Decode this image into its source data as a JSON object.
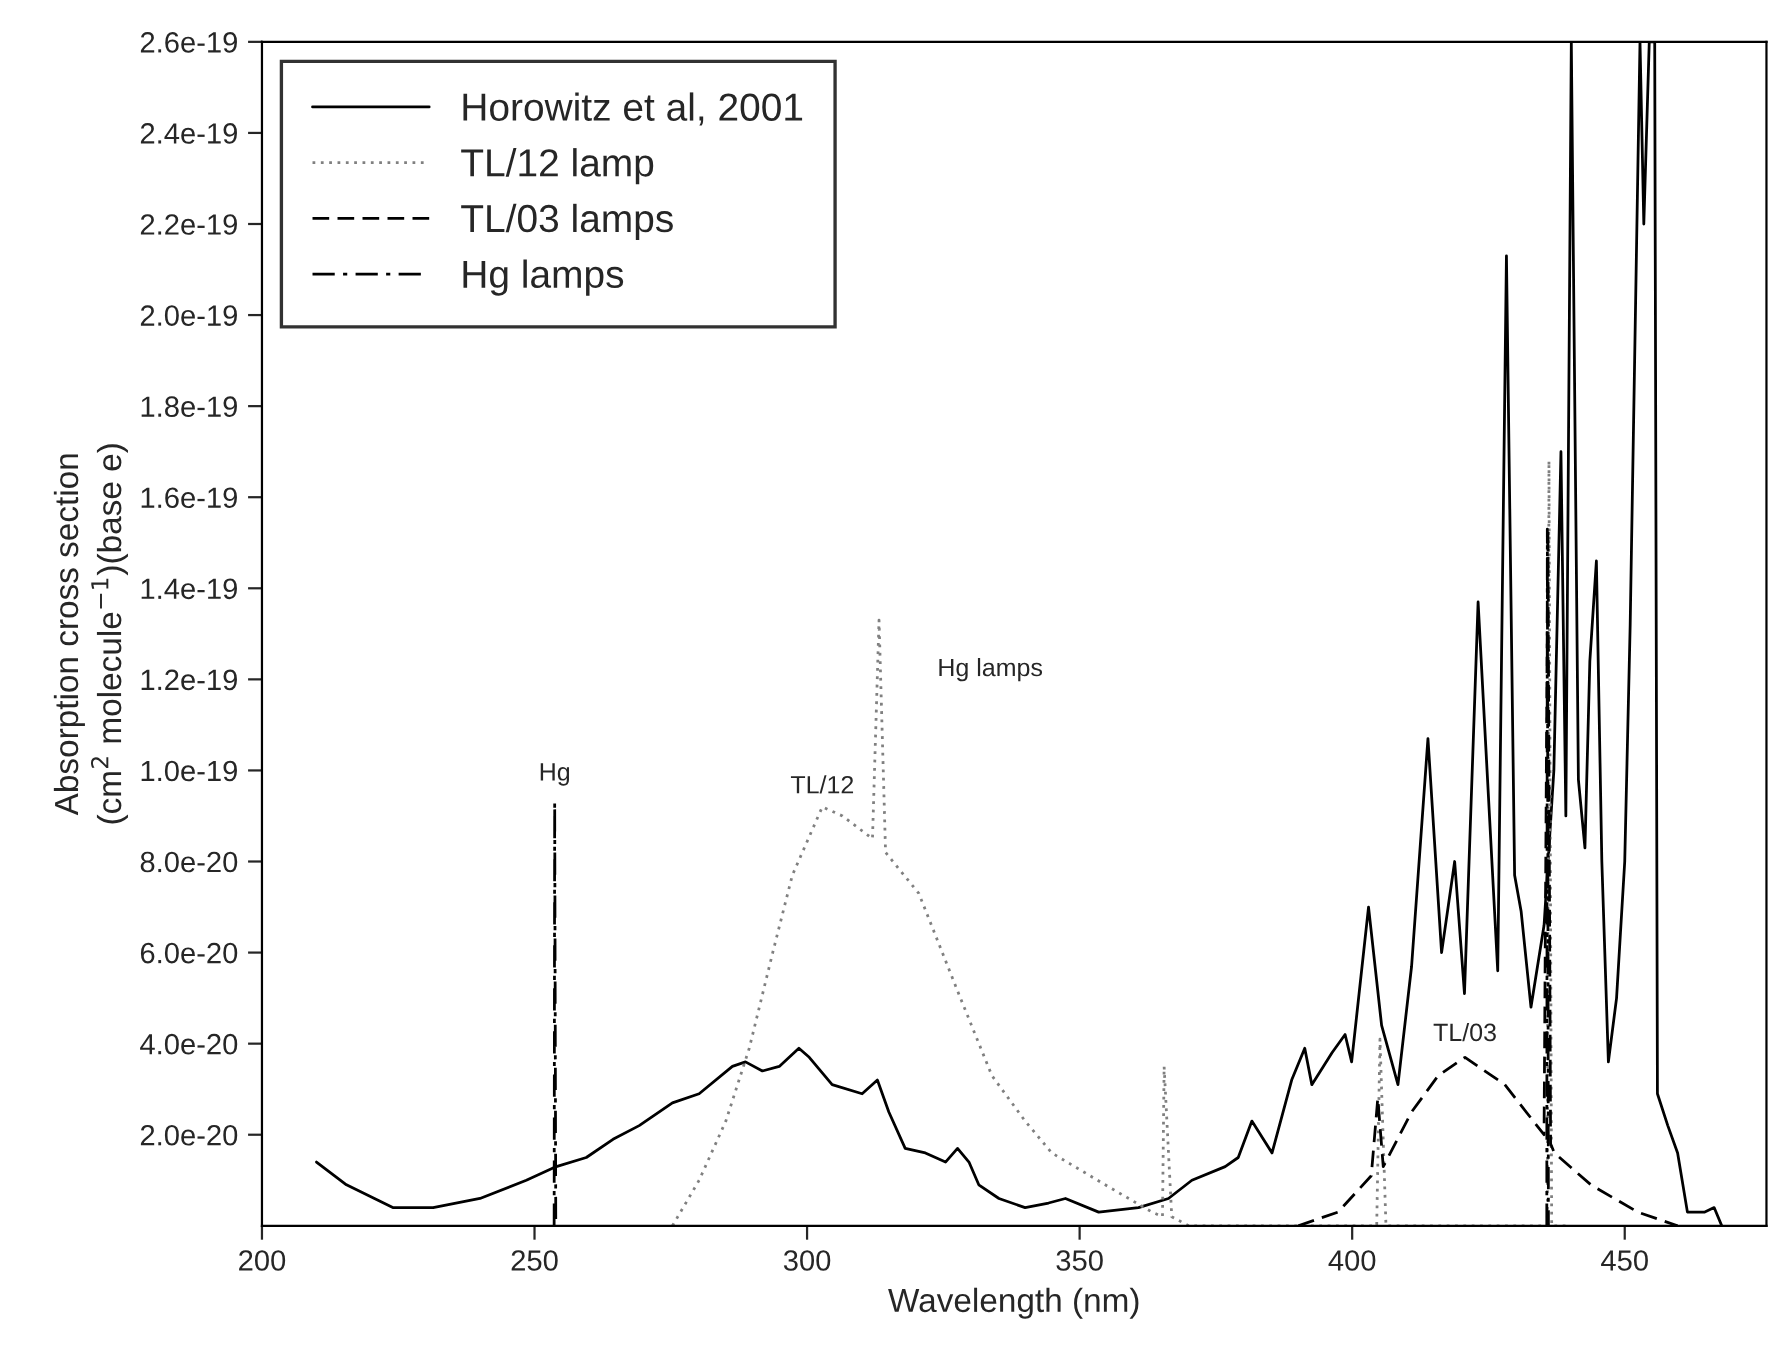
{
  "chart_data": {
    "type": "line",
    "xlabel": "Wavelength (nm)",
    "ylabel": "Absorption cross section\n(cm$^{2}$ molecule$^{−1}$)(base e)",
    "xlim": [
      200,
      476
    ],
    "xticks": [
      200,
      250,
      300,
      350,
      400,
      450
    ],
    "ylim": [
      0,
      2.6e-19
    ],
    "yticks": [
      {
        "value": 2e-20,
        "label": "2.0e-20"
      },
      {
        "value": 4e-20,
        "label": "4.0e-20"
      },
      {
        "value": 6e-20,
        "label": "6.0e-20"
      },
      {
        "value": 8e-20,
        "label": "8.0e-20"
      },
      {
        "value": 1e-19,
        "label": "1.0e-19"
      },
      {
        "value": 1.2e-19,
        "label": "1.2e-19"
      },
      {
        "value": 1.4e-19,
        "label": "1.4e-19"
      },
      {
        "value": 1.6e-19,
        "label": "1.6e-19"
      },
      {
        "value": 1.8e-19,
        "label": "1.8e-19"
      },
      {
        "value": 2e-19,
        "label": "2.0e-19"
      },
      {
        "value": 2.2e-19,
        "label": "2.2e-19"
      },
      {
        "value": 2.4e-19,
        "label": "2.4e-19"
      },
      {
        "value": 2.6e-19,
        "label": "2.6e-19"
      }
    ],
    "grid": false,
    "legend": "top left",
    "marker": "none",
    "series": [
      {
        "name": "Horowitz et al, 2001",
        "color": "#000000",
        "line_style": "solid",
        "x": [
          210.0,
          215.5,
          224,
          231.4,
          240,
          248.5,
          254,
          259.5,
          264.4,
          269.2,
          275.3,
          280.2,
          286.3,
          288.7,
          291.8,
          294.9,
          298.5,
          300.4,
          304.6,
          310.1,
          312.9,
          315,
          318,
          321.7,
          325.4,
          327.6,
          329.7,
          331.5,
          335.2,
          340,
          344.3,
          347.4,
          353.5,
          360.8,
          366.3,
          370.6,
          376.7,
          379.1,
          381.6,
          385.3,
          388.9,
          391.3,
          392.6,
          396.3,
          398.7,
          399.9,
          403,
          405.4,
          408.4,
          410.9,
          413.9,
          416.4,
          418.8,
          420.6,
          423.1,
          426.7,
          428.3,
          429.8,
          431,
          432.8,
          435.2,
          437,
          438.3,
          439.2,
          440.2,
          441.5,
          442.7,
          443.6,
          444.8,
          445.8,
          447,
          448.5,
          450,
          451,
          452.8,
          453.5,
          454.5,
          455.5,
          456,
          457.9,
          459.7,
          461.5,
          464.6,
          466.4,
          467.8
        ],
        "values": [
          1.4e-20,
          9e-21,
          4e-21,
          4e-21,
          6e-21,
          1e-20,
          1.3e-20,
          1.5e-20,
          1.9e-20,
          2.2e-20,
          2.7e-20,
          2.9e-20,
          3.5e-20,
          3.6e-20,
          3.4e-20,
          3.5e-20,
          3.9e-20,
          3.7e-20,
          3.1e-20,
          2.9e-20,
          3.2e-20,
          2.5e-20,
          1.7e-20,
          1.6e-20,
          1.4e-20,
          1.7e-20,
          1.4e-20,
          9e-21,
          6e-21,
          4e-21,
          5e-21,
          6e-21,
          3e-21,
          4e-21,
          6e-21,
          1e-20,
          1.3e-20,
          1.5e-20,
          2.3e-20,
          1.6e-20,
          3.2e-20,
          3.9e-20,
          3.1e-20,
          3.8e-20,
          4.2e-20,
          3.6e-20,
          7e-20,
          4.4e-20,
          3.1e-20,
          5.7e-20,
          1.07e-19,
          6e-20,
          8e-20,
          5.1e-20,
          1.37e-19,
          5.6e-20,
          2.13e-19,
          7.7e-20,
          6.9e-20,
          4.8e-20,
          6.6e-20,
          1e-19,
          1.7e-19,
          9e-20,
          2.6e-19,
          9.8e-20,
          8.3e-20,
          1.24e-19,
          1.46e-19,
          8e-20,
          3.6e-20,
          5e-20,
          8e-20,
          1.32e-19,
          2.6e-19,
          2.2e-19,
          2.6e-19,
          2.6e-19,
          2.9e-20,
          2.2e-20,
          1.6e-20,
          3e-21,
          3e-21,
          4e-21,
          0
        ]
      },
      {
        "name": "TL/12 lamp",
        "color": "#808080",
        "line_style": "dotted",
        "x": [
          275.3,
          280.2,
          285.1,
          289.4,
          293.7,
          297.3,
          302.8,
          306.5,
          312,
          313.2,
          314.4,
          320.5,
          327.8,
          333.9,
          340,
          344.9,
          354.7,
          363.3,
          365.2,
          365.5,
          366.9,
          370,
          404.5,
          405.1,
          406.2,
          435.8,
          436.1,
          436.6,
          440
        ],
        "values": [
          0,
          1e-20,
          2.3e-20,
          3.9e-20,
          6e-20,
          7.7e-20,
          9.2e-20,
          9e-20,
          8.5e-20,
          1.33e-19,
          8.2e-20,
          7.3e-20,
          5.1e-20,
          3.3e-20,
          2.3e-20,
          1.6e-20,
          9e-21,
          3e-21,
          2e-21,
          3.5e-20,
          2e-21,
          0,
          0,
          4.1e-20,
          0,
          0,
          1.68e-19,
          0,
          0
        ]
      },
      {
        "name": "TL/03 lamps",
        "color": "#000000",
        "line_style": "dashed",
        "x": [
          390.1,
          397.4,
          403.5,
          404.7,
          405.7,
          410.9,
          415.8,
          420.7,
          428.0,
          435.2,
          435.9,
          436.4,
          437.1,
          443.8,
          452.4,
          459.7
        ],
        "values": [
          0,
          3e-21,
          1.1e-20,
          2.8e-20,
          1.3e-20,
          2.5e-20,
          3.3e-20,
          3.7e-20,
          3.1e-20,
          2e-20,
          1.53e-19,
          1.8e-20,
          1.6e-20,
          9e-21,
          3e-21,
          0
        ]
      },
      {
        "name": "Hg lamps",
        "color": "#000000",
        "line_style": "dashdot",
        "x": [
          253.6,
          253.7,
          253.9,
          null,
          435.7,
          435.8,
          436
        ],
        "values": [
          0,
          9.3e-20,
          0,
          null,
          0,
          1.53e-19,
          0
        ]
      }
    ],
    "annotations": [
      {
        "text": "Hg",
        "x": 253.7,
        "y": 9.3e-20
      },
      {
        "text": "TL/12",
        "x": 302.8,
        "y": 9.2e-20
      },
      {
        "text": "Hg lamps",
        "x": 313.2,
        "y": 1.33e-19
      },
      {
        "text": "TL/03",
        "x": 420.7,
        "y": 3.7e-20
      }
    ]
  }
}
